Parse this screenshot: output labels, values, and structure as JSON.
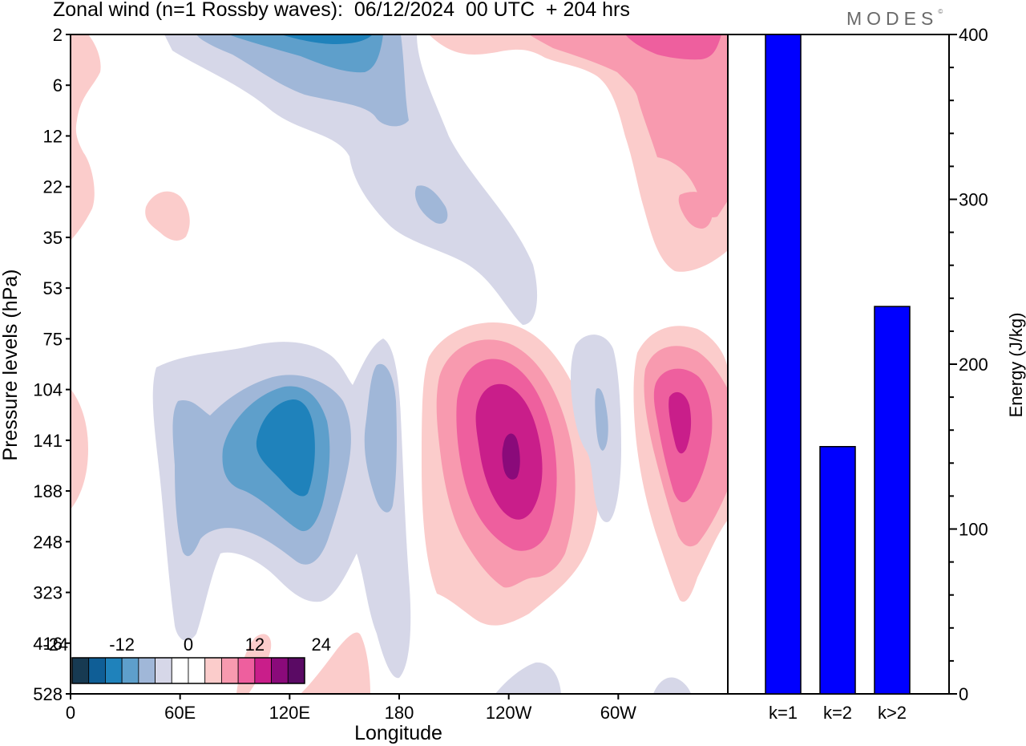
{
  "header": {
    "title": "Zonal wind (n=1 Rossby waves):  06/12/2024  00 UTC  + 204 hrs",
    "brand": "MODES",
    "brand_mark": "©"
  },
  "chart_data": [
    {
      "type": "heatmap",
      "title": "Zonal wind (n=1 Rossby waves):  06/12/2024  00 UTC  + 204 hrs",
      "xlabel": "Longitude",
      "ylabel": "Pressure levels (hPa)",
      "x_ticks": [
        "0",
        "60E",
        "120E",
        "180",
        "120W",
        "60W"
      ],
      "x_tick_degrees": [
        0,
        60,
        120,
        180,
        240,
        300
      ],
      "xlim": [
        0,
        360
      ],
      "y_levels": [
        2,
        6,
        12,
        22,
        35,
        53,
        75,
        104,
        141,
        188,
        248,
        323,
        416,
        528
      ],
      "color_scale": {
        "labels": [
          "-24",
          "-12",
          "0",
          "12",
          "24"
        ],
        "label_values": [
          -24,
          -12,
          0,
          12,
          24
        ],
        "colors": [
          "#173a52",
          "#0f5e96",
          "#1f82bb",
          "#5e9fcb",
          "#a0b7d8",
          "#d6d7e8",
          "#ffffff",
          "#ffffff",
          "#fbcccb",
          "#f89aaf",
          "#ee5f9e",
          "#c91e8a",
          "#8a0a7a",
          "#5a0a64"
        ]
      },
      "features": [
        {
          "sign": "negative",
          "peak": -20,
          "lon": 125,
          "level_hpa": 141
        },
        {
          "sign": "positive",
          "peak": 24,
          "lon": 240,
          "level_hpa": 141
        },
        {
          "sign": "positive",
          "peak": 20,
          "lon": 333,
          "level_hpa": 120
        },
        {
          "sign": "negative",
          "peak": -8,
          "lon": 290,
          "level_hpa": 130
        },
        {
          "sign": "negative",
          "peak": -20,
          "lon": 140,
          "level_hpa": 2
        },
        {
          "sign": "positive",
          "peak": 16,
          "lon": 330,
          "level_hpa": 3
        }
      ]
    },
    {
      "type": "bar",
      "categories": [
        "k=1",
        "k=2",
        "k>2"
      ],
      "values": [
        400,
        150,
        235
      ],
      "ylabel": "Energy (J/kg)",
      "ylim": [
        0,
        400
      ],
      "y_ticks": [
        0,
        100,
        200,
        300,
        400
      ],
      "bar_color": "#0000ff"
    }
  ]
}
